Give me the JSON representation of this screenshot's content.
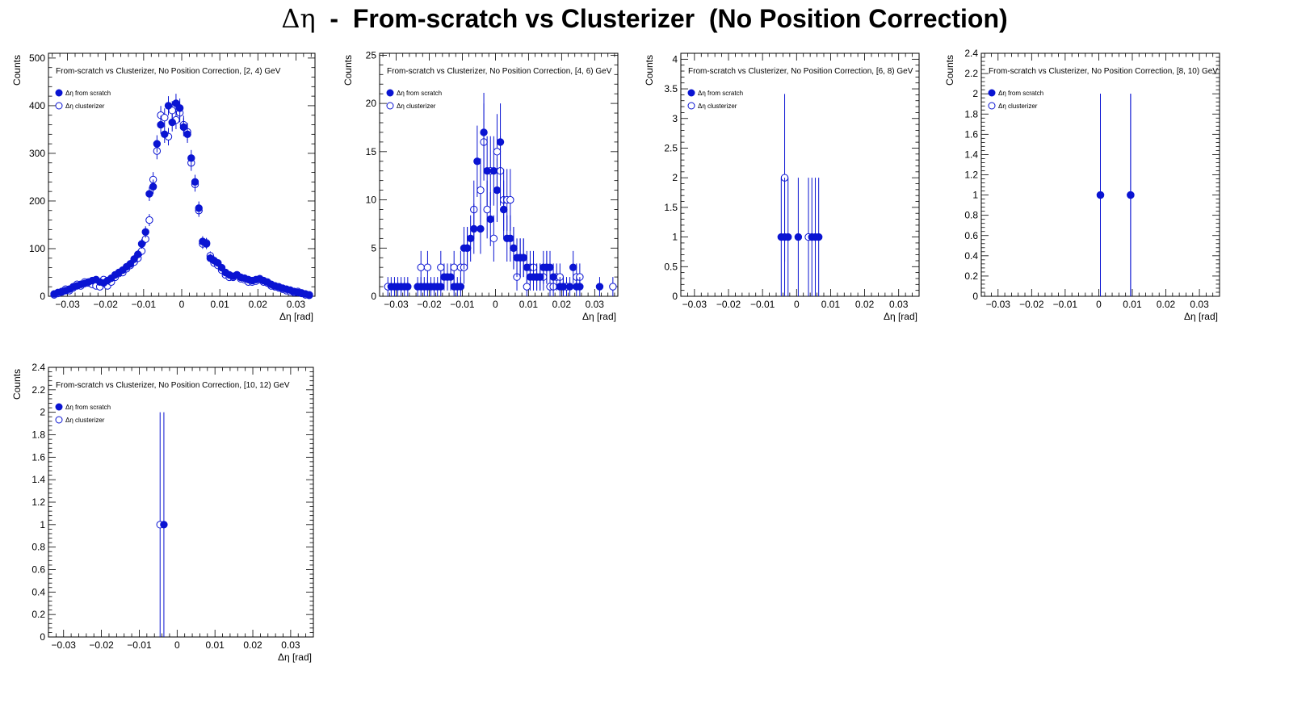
{
  "figure": {
    "title_symbol": "Δη",
    "title_rest": "  -  From-scratch vs Clusterizer  (No Position Correction)"
  },
  "colors": {
    "marker": "#0a14d2",
    "axis": "#000000"
  },
  "chart_data": [
    {
      "type": "scatter",
      "title": "From-scratch vs Clusterizer, No Position Correction, [2, 4) GeV",
      "xlabel": "Δη  [rad]",
      "ylabel": "Counts",
      "xlim": [
        -0.035,
        0.035
      ],
      "ylim": [
        0,
        510
      ],
      "xticks": [
        -0.03,
        -0.02,
        -0.01,
        0,
        0.01,
        0.02,
        0.03
      ],
      "xtick_labels": [
        "−0.03",
        "−0.02",
        "−0.01",
        "0",
        "0.01",
        "0.02",
        "0.03"
      ],
      "yticks": [
        0,
        100,
        200,
        300,
        400,
        500
      ],
      "ytick_labels": [
        "0",
        "100",
        "200",
        "300",
        "400",
        "500"
      ],
      "legend": [
        "Δη  from scratch",
        "Δη  clusterizer"
      ],
      "series": [
        {
          "name": "Δη  from scratch",
          "marker": "filled",
          "x": [
            -0.0335,
            -0.0325,
            -0.0315,
            -0.0305,
            -0.0295,
            -0.0285,
            -0.0275,
            -0.0265,
            -0.0255,
            -0.0245,
            -0.0235,
            -0.0225,
            -0.0215,
            -0.0205,
            -0.0195,
            -0.0185,
            -0.0175,
            -0.0165,
            -0.0155,
            -0.0145,
            -0.0135,
            -0.0125,
            -0.0115,
            -0.0105,
            -0.0095,
            -0.0085,
            -0.0075,
            -0.0065,
            -0.0055,
            -0.0045,
            -0.0035,
            -0.0025,
            -0.0015,
            -0.0005,
            0.0005,
            0.0015,
            0.0025,
            0.0035,
            0.0045,
            0.0055,
            0.0065,
            0.0075,
            0.0085,
            0.0095,
            0.0105,
            0.0115,
            0.0125,
            0.0135,
            0.0145,
            0.0155,
            0.0165,
            0.0175,
            0.0185,
            0.0195,
            0.0205,
            0.0215,
            0.0225,
            0.0235,
            0.0245,
            0.0255,
            0.0265,
            0.0275,
            0.0285,
            0.0295,
            0.0305,
            0.0315,
            0.0325,
            0.0335
          ],
          "y": [
            5,
            8,
            10,
            12,
            15,
            20,
            22,
            25,
            27,
            30,
            33,
            35,
            30,
            28,
            33,
            38,
            45,
            50,
            55,
            62,
            68,
            78,
            88,
            110,
            135,
            215,
            230,
            320,
            360,
            340,
            400,
            365,
            405,
            395,
            355,
            340,
            290,
            240,
            185,
            115,
            110,
            80,
            75,
            70,
            60,
            50,
            45,
            42,
            45,
            40,
            38,
            35,
            33,
            35,
            37,
            33,
            30,
            25,
            22,
            20,
            17,
            15,
            13,
            10,
            8,
            7,
            5,
            3
          ],
          "yerr": [
            2,
            3,
            3,
            4,
            4,
            5,
            5,
            5,
            5,
            6,
            6,
            6,
            6,
            5,
            6,
            6,
            7,
            7,
            7,
            8,
            8,
            9,
            9,
            10,
            12,
            15,
            15,
            18,
            19,
            18,
            20,
            19,
            20,
            20,
            19,
            18,
            17,
            15,
            14,
            11,
            11,
            9,
            9,
            8,
            8,
            7,
            7,
            6,
            7,
            6,
            6,
            6,
            6,
            6,
            6,
            6,
            6,
            5,
            5,
            5,
            4,
            4,
            4,
            3,
            3,
            3,
            2,
            2
          ]
        },
        {
          "name": "Δη  clusterizer",
          "marker": "open",
          "x": [
            -0.0335,
            -0.0325,
            -0.0315,
            -0.0305,
            -0.0295,
            -0.0285,
            -0.0275,
            -0.0265,
            -0.0255,
            -0.0245,
            -0.0235,
            -0.0225,
            -0.0215,
            -0.0205,
            -0.0195,
            -0.0185,
            -0.0175,
            -0.0165,
            -0.0155,
            -0.0145,
            -0.0135,
            -0.0125,
            -0.0115,
            -0.0105,
            -0.0095,
            -0.0085,
            -0.0075,
            -0.0065,
            -0.0055,
            -0.0045,
            -0.0035,
            -0.0025,
            -0.0015,
            -0.0005,
            0.0005,
            0.0015,
            0.0025,
            0.0035,
            0.0045,
            0.0055,
            0.0065,
            0.0075,
            0.0085,
            0.0095,
            0.0105,
            0.0115,
            0.0125,
            0.0135,
            0.0145,
            0.0155,
            0.0165,
            0.0175,
            0.0185,
            0.0195,
            0.0205,
            0.0215,
            0.0225,
            0.0235,
            0.0245,
            0.0255,
            0.0265,
            0.0275,
            0.0285,
            0.0295,
            0.0305,
            0.0315,
            0.0325,
            0.0335
          ],
          "y": [
            3,
            6,
            9,
            15,
            12,
            18,
            25,
            22,
            30,
            28,
            25,
            22,
            20,
            35,
            22,
            30,
            40,
            48,
            50,
            58,
            65,
            72,
            80,
            95,
            120,
            160,
            245,
            305,
            380,
            375,
            335,
            390,
            370,
            385,
            360,
            345,
            280,
            235,
            180,
            110,
            112,
            85,
            70,
            65,
            55,
            45,
            40,
            40,
            45,
            37,
            35,
            30,
            30,
            32,
            35,
            30,
            28,
            22,
            20,
            18,
            15,
            12,
            10,
            8,
            10,
            6,
            3,
            2
          ]
        }
      ]
    },
    {
      "type": "scatter",
      "title": "From-scratch vs Clusterizer, No Position Correction, [4, 6) GeV",
      "xlabel": "Δη  [rad]",
      "ylabel": "Counts",
      "xlim": [
        -0.035,
        0.037
      ],
      "ylim": [
        0,
        25.2
      ],
      "xticks": [
        -0.03,
        -0.02,
        -0.01,
        0,
        0.01,
        0.02,
        0.03
      ],
      "xtick_labels": [
        "−0.03",
        "−0.02",
        "−0.01",
        "0",
        "0.01",
        "0.02",
        "0.03"
      ],
      "yticks": [
        0,
        5,
        10,
        15,
        20,
        25
      ],
      "ytick_labels": [
        "0",
        "5",
        "10",
        "15",
        "20",
        "25"
      ],
      "legend": [
        "Δη  from scratch",
        "Δη  clusterizer"
      ],
      "series": [
        {
          "name": "Δη  from scratch",
          "marker": "filled",
          "x": [
            -0.0315,
            -0.0305,
            -0.0295,
            -0.0285,
            -0.0275,
            -0.0265,
            -0.0235,
            -0.0225,
            -0.0215,
            -0.0205,
            -0.0195,
            -0.0185,
            -0.0175,
            -0.0165,
            -0.0155,
            -0.0145,
            -0.0135,
            -0.0125,
            -0.0115,
            -0.0105,
            -0.0095,
            -0.0085,
            -0.0075,
            -0.0065,
            -0.0055,
            -0.0045,
            -0.0035,
            -0.0025,
            -0.0015,
            -0.0005,
            0.0005,
            0.0015,
            0.0025,
            0.0035,
            0.0045,
            0.0055,
            0.0065,
            0.0075,
            0.0085,
            0.0095,
            0.0105,
            0.0115,
            0.0125,
            0.0135,
            0.0145,
            0.0155,
            0.0165,
            0.0175,
            0.0195,
            0.0205,
            0.0225,
            0.0235,
            0.0245,
            0.0255,
            0.0315
          ],
          "y": [
            1,
            1,
            1,
            1,
            1,
            1,
            1,
            1,
            1,
            1,
            1,
            1,
            1,
            1,
            2,
            2,
            2,
            1,
            1,
            1,
            5,
            5,
            6,
            7,
            14,
            7,
            17,
            13,
            8,
            13,
            11,
            16,
            9,
            6,
            6,
            5,
            4,
            4,
            4,
            3,
            2,
            2,
            2,
            2,
            3,
            3,
            3,
            2,
            1,
            1,
            1,
            3,
            1,
            1,
            1
          ],
          "yerr": [
            1,
            1,
            1,
            1,
            1,
            1,
            1,
            1,
            1,
            1,
            1,
            1,
            1,
            1,
            1.4,
            1.4,
            1.4,
            1,
            1,
            1,
            2.2,
            2.2,
            2.4,
            2.6,
            3.7,
            2.6,
            4.1,
            3.6,
            2.8,
            3.6,
            3.3,
            4,
            3,
            2.4,
            2.4,
            2.2,
            2,
            2,
            2,
            1.7,
            1.4,
            1.4,
            1.4,
            1.4,
            1.7,
            1.7,
            1.7,
            1.4,
            1,
            1,
            1,
            1.7,
            1,
            1,
            1
          ]
        },
        {
          "name": "Δη  clusterizer",
          "marker": "open",
          "x": [
            -0.0325,
            -0.0225,
            -0.0205,
            -0.0165,
            -0.0125,
            -0.0105,
            -0.0095,
            -0.0085,
            -0.0065,
            -0.0045,
            -0.0035,
            -0.0025,
            -0.0015,
            -0.0005,
            0.0005,
            0.0015,
            0.0025,
            0.0035,
            0.0045,
            0.0055,
            0.0065,
            0.0075,
            0.0085,
            0.0095,
            0.0105,
            0.0115,
            0.0125,
            0.0135,
            0.0145,
            0.0155,
            0.0165,
            0.0175,
            0.0185,
            0.0195,
            0.0205,
            0.0215,
            0.0245,
            0.0255,
            0.0355
          ],
          "y": [
            1,
            3,
            3,
            3,
            3,
            3,
            3,
            5,
            9,
            11,
            16,
            9,
            13,
            6,
            15,
            13,
            10,
            10,
            10,
            5,
            2,
            4,
            4,
            1,
            3,
            3,
            2,
            2,
            2,
            3,
            1,
            1,
            2,
            2,
            1,
            1,
            2,
            2,
            1
          ],
          "yerr": [
            1,
            1.7,
            1.7,
            1.7,
            1.7,
            1.7,
            1.7,
            2.2,
            3,
            3.3,
            4,
            3,
            3.6,
            2.4,
            3.9,
            3.6,
            3.2,
            3.2,
            3.2,
            2.2,
            1.4,
            2,
            2,
            1,
            1.7,
            1.7,
            1.4,
            1.4,
            1.4,
            1.7,
            1,
            1,
            1.4,
            1.4,
            1,
            1,
            1.4,
            1.4,
            1
          ]
        }
      ]
    },
    {
      "type": "scatter",
      "title": "From-scratch vs Clusterizer, No Position Correction, [6, 8) GeV",
      "xlabel": "Δη  [rad]",
      "ylabel": "Counts",
      "xlim": [
        -0.034,
        0.036
      ],
      "ylim": [
        0,
        4.1
      ],
      "xticks": [
        -0.03,
        -0.02,
        -0.01,
        0,
        0.01,
        0.02,
        0.03
      ],
      "xtick_labels": [
        "−0.03",
        "−0.02",
        "−0.01",
        "0",
        "0.01",
        "0.02",
        "0.03"
      ],
      "yticks": [
        0,
        0.5,
        1,
        1.5,
        2,
        2.5,
        3,
        3.5,
        4
      ],
      "ytick_labels": [
        "0",
        "0.5",
        "1",
        "1.5",
        "2",
        "2.5",
        "3",
        "3.5",
        "4"
      ],
      "legend": [
        "Δη  from scratch",
        "Δη  clusterizer"
      ],
      "series": [
        {
          "name": "Δη  from scratch",
          "marker": "filled",
          "x": [
            -0.0045,
            -0.0035,
            -0.0025,
            0.0005,
            0.0045,
            0.0055,
            0.0065
          ],
          "y": [
            1,
            1,
            1,
            1,
            1,
            1,
            1
          ],
          "yerr": [
            1,
            1,
            1,
            1,
            1,
            1,
            1
          ]
        },
        {
          "name": "Δη  clusterizer",
          "marker": "open",
          "x": [
            -0.0035,
            0.0035
          ],
          "y": [
            2,
            1
          ],
          "yerr": [
            1.414,
            1
          ]
        }
      ]
    },
    {
      "type": "scatter",
      "title": "From-scratch vs Clusterizer, No Position Correction, [8, 10) GeV",
      "xlabel": "Δη  [rad]",
      "ylabel": "Counts",
      "xlim": [
        -0.035,
        0.036
      ],
      "ylim": [
        0,
        2.4
      ],
      "xticks": [
        -0.03,
        -0.02,
        -0.01,
        0,
        0.01,
        0.02,
        0.03
      ],
      "xtick_labels": [
        "−0.03",
        "−0.02",
        "−0.01",
        "0",
        "0.01",
        "0.02",
        "0.03"
      ],
      "yticks": [
        0,
        0.2,
        0.4,
        0.6,
        0.8,
        1,
        1.2,
        1.4,
        1.6,
        1.8,
        2,
        2.2,
        2.4
      ],
      "ytick_labels": [
        "0",
        "0.2",
        "0.4",
        "0.6",
        "0.8",
        "1",
        "1.2",
        "1.4",
        "1.6",
        "1.8",
        "2",
        "2.2",
        "2.4"
      ],
      "legend": [
        "Δη  from scratch",
        "Δη  clusterizer"
      ],
      "series": [
        {
          "name": "Δη  from scratch",
          "marker": "filled",
          "x": [
            0.0005,
            0.0095
          ],
          "y": [
            1,
            1
          ],
          "yerr": [
            1,
            1
          ]
        },
        {
          "name": "Δη  clusterizer",
          "marker": "open",
          "x": [
            0.0005,
            0.0095
          ],
          "y": [
            1,
            1
          ],
          "yerr": [
            1,
            1
          ]
        }
      ]
    },
    {
      "type": "scatter",
      "title": "From-scratch vs Clusterizer, No Position Correction, [10, 12) GeV",
      "xlabel": "Δη  [rad]",
      "ylabel": "Counts",
      "xlim": [
        -0.034,
        0.036
      ],
      "ylim": [
        0,
        2.4
      ],
      "xticks": [
        -0.03,
        -0.02,
        -0.01,
        0,
        0.01,
        0.02,
        0.03
      ],
      "xtick_labels": [
        "−0.03",
        "−0.02",
        "−0.01",
        "0",
        "0.01",
        "0.02",
        "0.03"
      ],
      "yticks": [
        0,
        0.2,
        0.4,
        0.6,
        0.8,
        1,
        1.2,
        1.4,
        1.6,
        1.8,
        2,
        2.2,
        2.4
      ],
      "ytick_labels": [
        "0",
        "0.2",
        "0.4",
        "0.6",
        "0.8",
        "1",
        "1.2",
        "1.4",
        "1.6",
        "1.8",
        "2",
        "2.2",
        "2.4"
      ],
      "legend": [
        "Δη  from scratch",
        "Δη  clusterizer"
      ],
      "series": [
        {
          "name": "Δη  from scratch",
          "marker": "filled",
          "x": [
            -0.0035
          ],
          "y": [
            1
          ],
          "yerr": [
            1
          ]
        },
        {
          "name": "Δη  clusterizer",
          "marker": "open",
          "x": [
            -0.0045
          ],
          "y": [
            1
          ],
          "yerr": [
            1
          ]
        }
      ]
    }
  ]
}
